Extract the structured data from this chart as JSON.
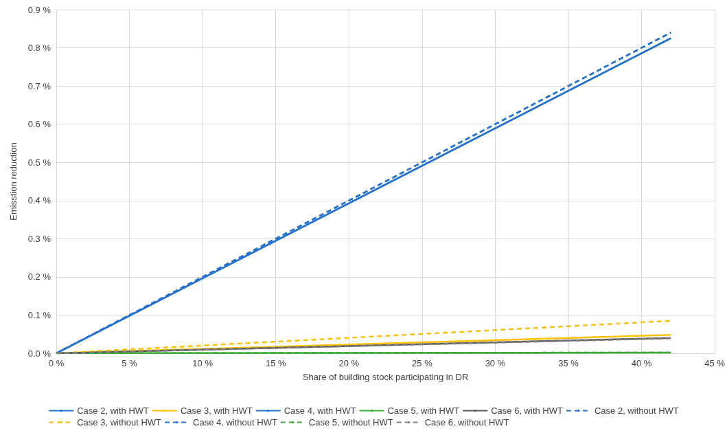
{
  "chart_data": {
    "type": "line",
    "xlabel": "Share of building stock participating in DR",
    "ylabel": "Emisstion reduction",
    "x": [
      0,
      42
    ],
    "xlim": [
      0,
      45
    ],
    "xticks": [
      {
        "value": 0,
        "label": "0 %"
      },
      {
        "value": 5,
        "label": "5 %"
      },
      {
        "value": 10,
        "label": "10 %"
      },
      {
        "value": 15,
        "label": "15 %"
      },
      {
        "value": 20,
        "label": "20 %"
      },
      {
        "value": 25,
        "label": "25 %"
      },
      {
        "value": 30,
        "label": "30 %"
      },
      {
        "value": 35,
        "label": "35 %"
      },
      {
        "value": 40,
        "label": "40 %"
      },
      {
        "value": 45,
        "label": "45 %"
      }
    ],
    "ylim": [
      0,
      0.9
    ],
    "yticks": [
      {
        "value": 0,
        "label": "0.0 %"
      },
      {
        "value": 0.1,
        "label": "0.1 %"
      },
      {
        "value": 0.2,
        "label": "0.2 %"
      },
      {
        "value": 0.3,
        "label": "0.3 %"
      },
      {
        "value": 0.4,
        "label": "0.4 %"
      },
      {
        "value": 0.5,
        "label": "0.5 %"
      },
      {
        "value": 0.6,
        "label": "0.6 %"
      },
      {
        "value": 0.7,
        "label": "0.7 %"
      },
      {
        "value": 0.8,
        "label": "0.8 %"
      },
      {
        "value": 0.9,
        "label": "0.9 %"
      }
    ],
    "grid": true,
    "legend": "bottom",
    "marker": "none",
    "series": [
      {
        "name": "Case 2, with HWT",
        "color": "#2472d0",
        "values": [
          0,
          0.825
        ],
        "line_style": "solid"
      },
      {
        "name": "Case 3, with HWT",
        "color": "#ffc000",
        "values": [
          0,
          0.048
        ],
        "line_style": "solid"
      },
      {
        "name": "Case 4, with HWT",
        "color": "#2472d0",
        "values": [
          0,
          0.825
        ],
        "line_style": "solid"
      },
      {
        "name": "Case 5, with HWT",
        "color": "#3aaa35",
        "values": [
          0,
          0.002
        ],
        "line_style": "solid"
      },
      {
        "name": "Case 6, with HWT",
        "color": "#595959",
        "values": [
          0,
          0.04
        ],
        "line_style": "solid"
      },
      {
        "name": "Case 2, without HWT",
        "color": "#2472d0",
        "values": [
          0,
          0.84
        ],
        "line_style": "dashed"
      },
      {
        "name": "Case 3, without HWT",
        "color": "#ffc000",
        "values": [
          0,
          0.085
        ],
        "line_style": "dashed"
      },
      {
        "name": "Case 4, without HWT",
        "color": "#2472d0",
        "values": [
          0,
          0.84
        ],
        "line_style": "dashed"
      },
      {
        "name": "Case 5, without HWT",
        "color": "#3aaa35",
        "values": [
          0,
          0.002
        ],
        "line_style": "dashed"
      },
      {
        "name": "Case 6, without HWT",
        "color": "#7f7f7f",
        "values": [
          0,
          0.039
        ],
        "line_style": "dashed"
      }
    ]
  }
}
